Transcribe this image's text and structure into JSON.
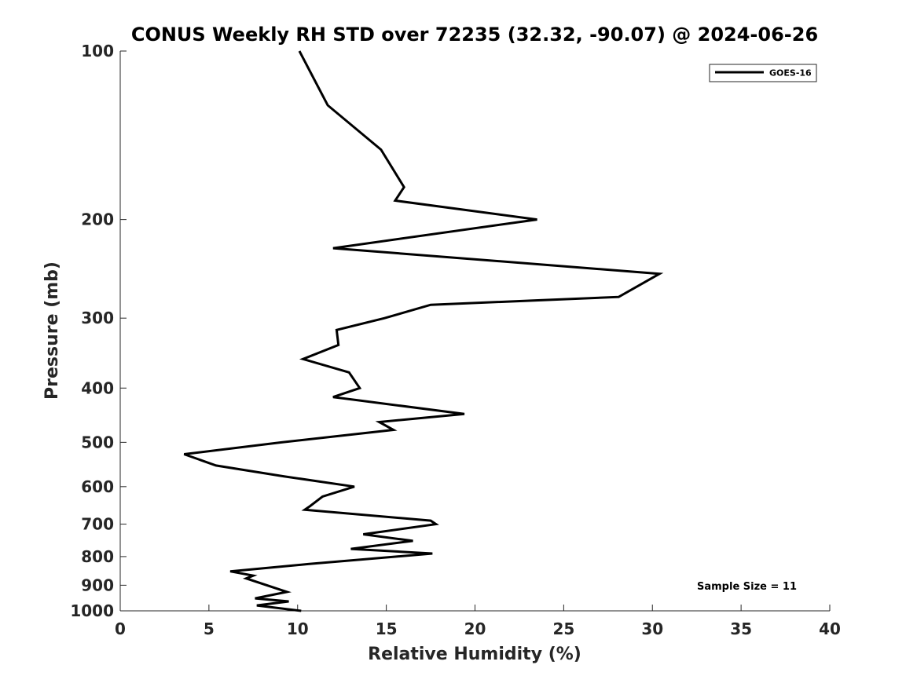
{
  "chart_data": {
    "type": "line",
    "title": "CONUS Weekly RH STD over 72235 (32.32, -90.07) @ 2024-06-26",
    "xlabel": "Relative Humidity (%)",
    "ylabel": "Pressure (mb)",
    "xlim": [
      0,
      40
    ],
    "ylim": [
      100,
      1000
    ],
    "y_scale": "log",
    "y_inverted": true,
    "x_ticks": [
      "0",
      "5",
      "10",
      "15",
      "20",
      "25",
      "30",
      "35",
      "40"
    ],
    "y_ticks": [
      "100",
      "200",
      "300",
      "400",
      "500",
      "600",
      "700",
      "800",
      "900",
      "1000"
    ],
    "grid": false,
    "legend_position": "top-right",
    "series": [
      {
        "name": "GOES-16",
        "color": "#000000",
        "points": [
          [
            10.1,
            100
          ],
          [
            11.7,
            125
          ],
          [
            14.7,
            150
          ],
          [
            16.0,
            175
          ],
          [
            15.5,
            185
          ],
          [
            23.5,
            200
          ],
          [
            12.0,
            225
          ],
          [
            30.4,
            250
          ],
          [
            28.1,
            275
          ],
          [
            17.5,
            284
          ],
          [
            14.9,
            300
          ],
          [
            12.2,
            315
          ],
          [
            12.3,
            335
          ],
          [
            10.3,
            355
          ],
          [
            12.9,
            375
          ],
          [
            13.5,
            400
          ],
          [
            12.0,
            415
          ],
          [
            19.4,
            445
          ],
          [
            14.6,
            460
          ],
          [
            15.4,
            475
          ],
          [
            9.1,
            500
          ],
          [
            3.6,
            525
          ],
          [
            5.4,
            550
          ],
          [
            9.2,
            575
          ],
          [
            13.2,
            600
          ],
          [
            11.4,
            625
          ],
          [
            10.7,
            650
          ],
          [
            10.4,
            660
          ],
          [
            17.5,
            690
          ],
          [
            17.8,
            700
          ],
          [
            13.7,
            730
          ],
          [
            16.5,
            750
          ],
          [
            13.0,
            775
          ],
          [
            17.6,
            790
          ],
          [
            10.6,
            825
          ],
          [
            6.2,
            850
          ],
          [
            7.5,
            865
          ],
          [
            7.1,
            875
          ],
          [
            9.4,
            925
          ],
          [
            7.6,
            950
          ],
          [
            9.5,
            962
          ],
          [
            7.7,
            978
          ],
          [
            10.2,
            1000
          ]
        ]
      }
    ],
    "annotations": [
      "Sample Size = 11"
    ]
  }
}
